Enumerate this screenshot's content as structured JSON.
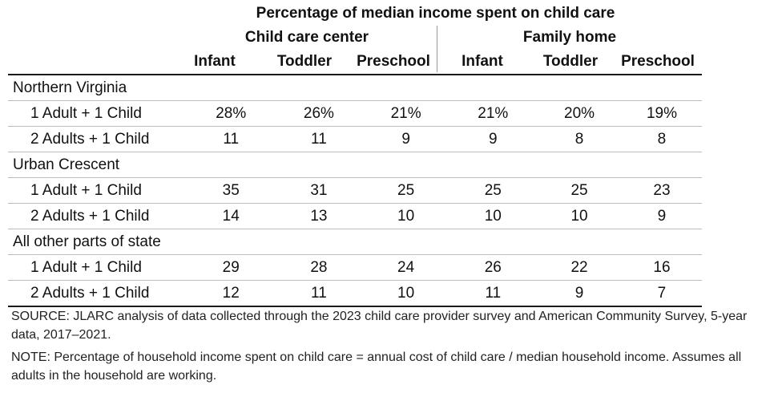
{
  "title": "Percentage of median income spent on child care",
  "groups": {
    "center": "Child care center",
    "home": "Family home"
  },
  "columns": [
    "Infant",
    "Toddler",
    "Preschool",
    "Infant",
    "Toddler",
    "Preschool"
  ],
  "regions": [
    {
      "name": "Northern Virginia",
      "rows": [
        {
          "label": "1 Adult + 1 Child",
          "values": [
            "28%",
            "26%",
            "21%",
            "21%",
            "20%",
            "19%"
          ]
        },
        {
          "label": "2 Adults + 1 Child",
          "values": [
            "11",
            "11",
            "9",
            "9",
            "8",
            "8"
          ]
        }
      ]
    },
    {
      "name": "Urban Crescent",
      "rows": [
        {
          "label": "1 Adult + 1 Child",
          "values": [
            "35",
            "31",
            "25",
            "25",
            "25",
            "23"
          ]
        },
        {
          "label": "2 Adults + 1 Child",
          "values": [
            "14",
            "13",
            "10",
            "10",
            "10",
            "9"
          ]
        }
      ]
    },
    {
      "name": "All other parts of state",
      "rows": [
        {
          "label": "1 Adult + 1 Child",
          "values": [
            "29",
            "28",
            "24",
            "26",
            "22",
            "16"
          ]
        },
        {
          "label": "2 Adults + 1 Child",
          "values": [
            "12",
            "11",
            "10",
            "11",
            "9",
            "7"
          ]
        }
      ]
    }
  ],
  "source": "SOURCE: JLARC analysis of data collected through the 2023 child care provider survey and American Community Survey, 5-year data, 2017–2021.",
  "note": "NOTE: Percentage of household income spent on child care = annual cost of child care / median household income. Assumes all adults in the household are working."
}
